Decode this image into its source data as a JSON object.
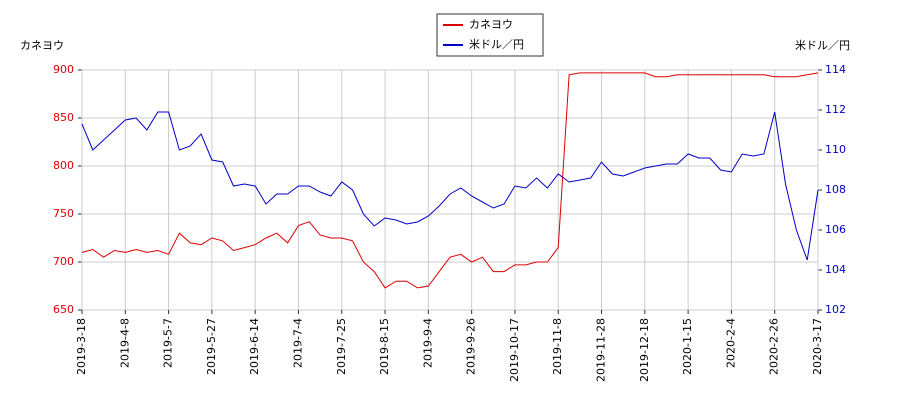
{
  "chart_data": {
    "type": "line",
    "y_label": "カネヨウ",
    "y2_label": "米ドル／円",
    "x": [
      "2019-3-18",
      null,
      null,
      null,
      "2019-4-8",
      null,
      null,
      null,
      "2019-5-7",
      null,
      null,
      null,
      "2019-5-27",
      null,
      null,
      null,
      "2019-6-14",
      null,
      null,
      null,
      "2019-7-4",
      null,
      null,
      null,
      "2019-7-25",
      null,
      null,
      null,
      "2019-8-15",
      null,
      null,
      null,
      "2019-9-4",
      null,
      null,
      null,
      "2019-9-26",
      null,
      null,
      null,
      "2019-10-17",
      null,
      null,
      null,
      "2019-11-8",
      null,
      null,
      null,
      "2019-11-28",
      null,
      null,
      null,
      "2019-12-18",
      null,
      null,
      null,
      "2020-1-15",
      null,
      null,
      null,
      "2020-2-4",
      null,
      null,
      null,
      "2020-2-26",
      null,
      null,
      null,
      "2020-3-17"
    ],
    "series": [
      {
        "name": "カネヨウ",
        "color": "#dd0000",
        "axis": "y",
        "values": [
          710,
          713,
          705,
          712,
          710,
          713,
          710,
          712,
          708,
          730,
          720,
          718,
          725,
          722,
          712,
          715,
          718,
          725,
          730,
          720,
          738,
          742,
          728,
          725,
          725,
          722,
          700,
          690,
          673,
          680,
          680,
          673,
          675,
          690,
          705,
          708,
          700,
          705,
          690,
          690,
          697,
          697,
          700,
          700,
          715,
          895,
          897,
          897,
          897,
          897,
          897,
          897,
          897,
          893,
          893,
          895,
          895,
          895,
          895,
          895,
          895,
          895,
          895,
          895,
          893,
          893,
          893,
          895,
          897
        ]
      },
      {
        "name": "米ドル／円",
        "color": "#0000cc",
        "axis": "y2",
        "values": [
          111.3,
          110,
          110.5,
          111,
          111.5,
          111.6,
          111,
          111.9,
          111.9,
          110,
          110.2,
          110.8,
          109.5,
          109.4,
          108.2,
          108.3,
          108.2,
          107.3,
          107.8,
          107.8,
          108.2,
          108.2,
          107.9,
          107.7,
          108.4,
          108,
          106.8,
          106.2,
          106.6,
          106.5,
          106.3,
          106.4,
          106.7,
          107.2,
          107.8,
          108.1,
          107.7,
          107.4,
          107.1,
          107.3,
          108.2,
          108.1,
          108.6,
          108.1,
          108.8,
          108.4,
          108.5,
          108.6,
          109.4,
          108.8,
          108.7,
          108.9,
          109.1,
          109.2,
          109.3,
          109.3,
          109.8,
          109.6,
          109.6,
          109,
          108.9,
          109.8,
          109.7,
          109.8,
          111.9,
          108.3,
          106,
          104.5,
          108
        ]
      }
    ],
    "ylim": [
      650,
      900
    ],
    "yticks": [
      650,
      700,
      750,
      800,
      850,
      900
    ],
    "y2lim": [
      102,
      114
    ],
    "y2ticks": [
      102,
      104,
      106,
      108,
      110,
      112,
      114
    ],
    "grid": true
  }
}
